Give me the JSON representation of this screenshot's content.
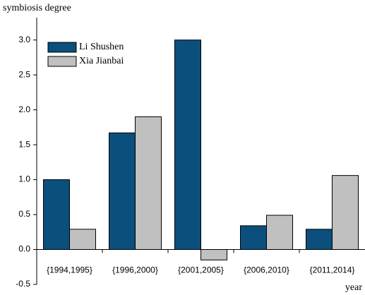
{
  "chart_data": {
    "type": "bar",
    "y_label": "symbiosis degree",
    "x_label": "year",
    "categories": [
      "{1994,1995}",
      "{1996,2000}",
      "{2001,2005}",
      "{2006,2010}",
      "{2011,2014}"
    ],
    "series": [
      {
        "name": "Li Shushen",
        "color": "#0b4f7c",
        "values": [
          1.0,
          1.67,
          3.0,
          0.34,
          0.29
        ]
      },
      {
        "name": "Xia Jianbai",
        "color": "#c0c0c0",
        "values": [
          0.29,
          1.9,
          -0.15,
          0.49,
          1.06
        ]
      }
    ],
    "ylim": [
      -0.5,
      3.32
    ],
    "yticks": [
      {
        "value": -0.5,
        "label": "-0.5"
      },
      {
        "value": 0,
        "label": "0.0"
      },
      {
        "value": 0.5,
        "label": "0.5"
      },
      {
        "value": 1,
        "label": "1.0"
      },
      {
        "value": 1.5,
        "label": "1.5"
      },
      {
        "value": 2,
        "label": "2.0"
      },
      {
        "value": 2.5,
        "label": "2.5"
      },
      {
        "value": 3,
        "label": "3.0"
      }
    ],
    "legend": "upper left"
  }
}
